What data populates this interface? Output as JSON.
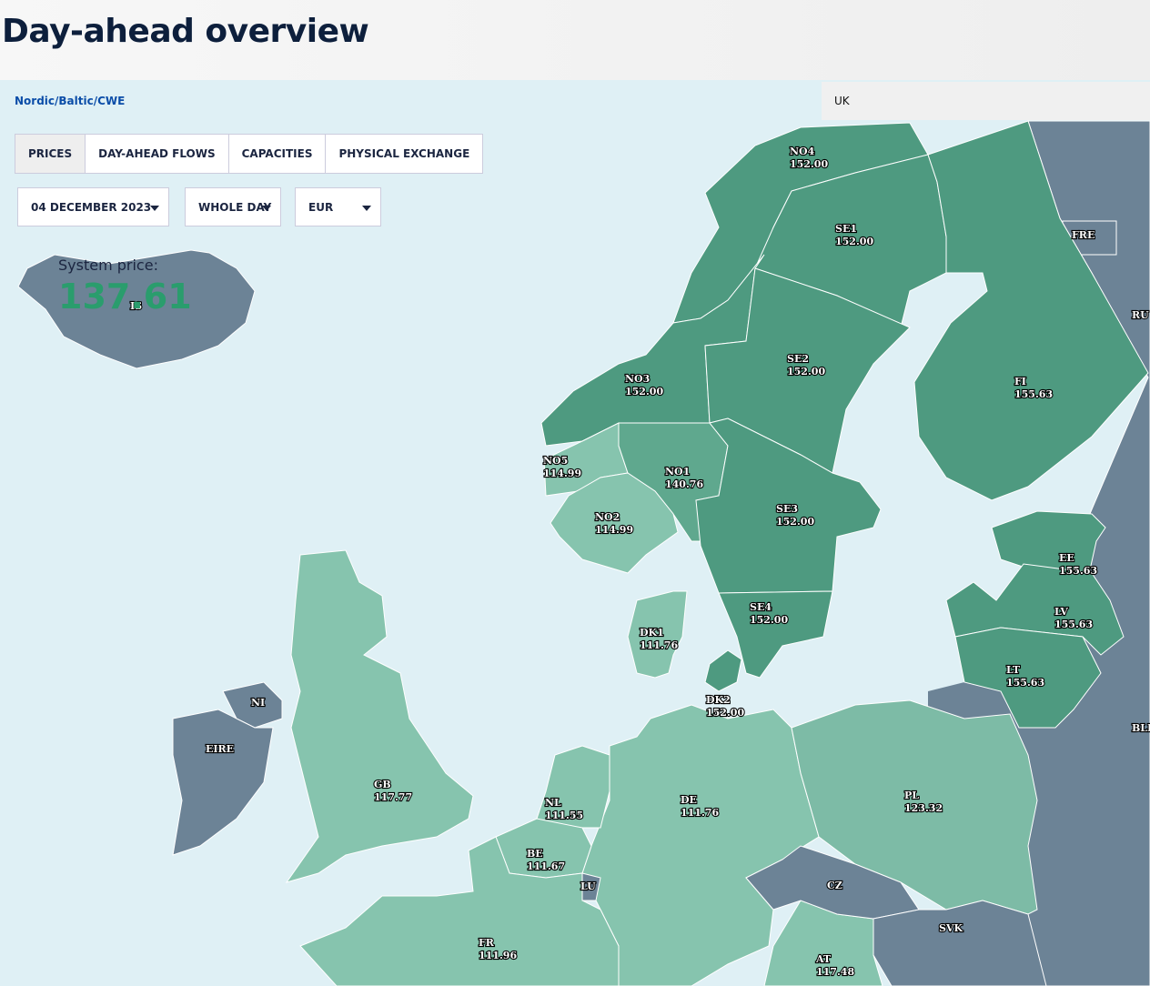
{
  "header": {
    "title": "Day-ahead overview"
  },
  "tabs": [
    "Nordic/Baltic/CWE",
    "UK"
  ],
  "buttons": [
    "PRICES",
    "DAY-AHEAD FLOWS",
    "CAPACITIES",
    "PHYSICAL EXCHANGE"
  ],
  "dropdowns": [
    "04 DECEMBER 2023",
    "WHOLE DAY",
    "EUR"
  ],
  "system_price": {
    "label": "System price:",
    "value": "137.61"
  },
  "regions": [
    {
      "code": "NO4",
      "price": "152.00"
    },
    {
      "code": "SE1",
      "price": "152.00"
    },
    {
      "code": "FI",
      "price": "155.63"
    },
    {
      "code": "NO3",
      "price": "152.00"
    },
    {
      "code": "SE2",
      "price": "152.00"
    },
    {
      "code": "NO5",
      "price": "114.99"
    },
    {
      "code": "NO1",
      "price": "140.76"
    },
    {
      "code": "NO2",
      "price": "114.99"
    },
    {
      "code": "SE3",
      "price": "152.00"
    },
    {
      "code": "EE",
      "price": "155.63"
    },
    {
      "code": "SE4",
      "price": "152.00"
    },
    {
      "code": "LV",
      "price": "155.63"
    },
    {
      "code": "DK1",
      "price": "111.76"
    },
    {
      "code": "LT",
      "price": "155.63"
    },
    {
      "code": "DK2",
      "price": "152.00"
    },
    {
      "code": "GB",
      "price": "117.77"
    },
    {
      "code": "DE",
      "price": "111.76"
    },
    {
      "code": "PL",
      "price": "123.32"
    },
    {
      "code": "NL",
      "price": "111.55"
    },
    {
      "code": "BE",
      "price": "111.67"
    },
    {
      "code": "FR",
      "price": "111.96"
    },
    {
      "code": "AT",
      "price": "117.48"
    },
    {
      "code": "IS"
    },
    {
      "code": "NI"
    },
    {
      "code": "EIRE"
    },
    {
      "code": "FRE"
    },
    {
      "code": "RU"
    },
    {
      "code": "BLR"
    },
    {
      "code": "CZ"
    },
    {
      "code": "SVK"
    },
    {
      "code": "LU"
    }
  ]
}
